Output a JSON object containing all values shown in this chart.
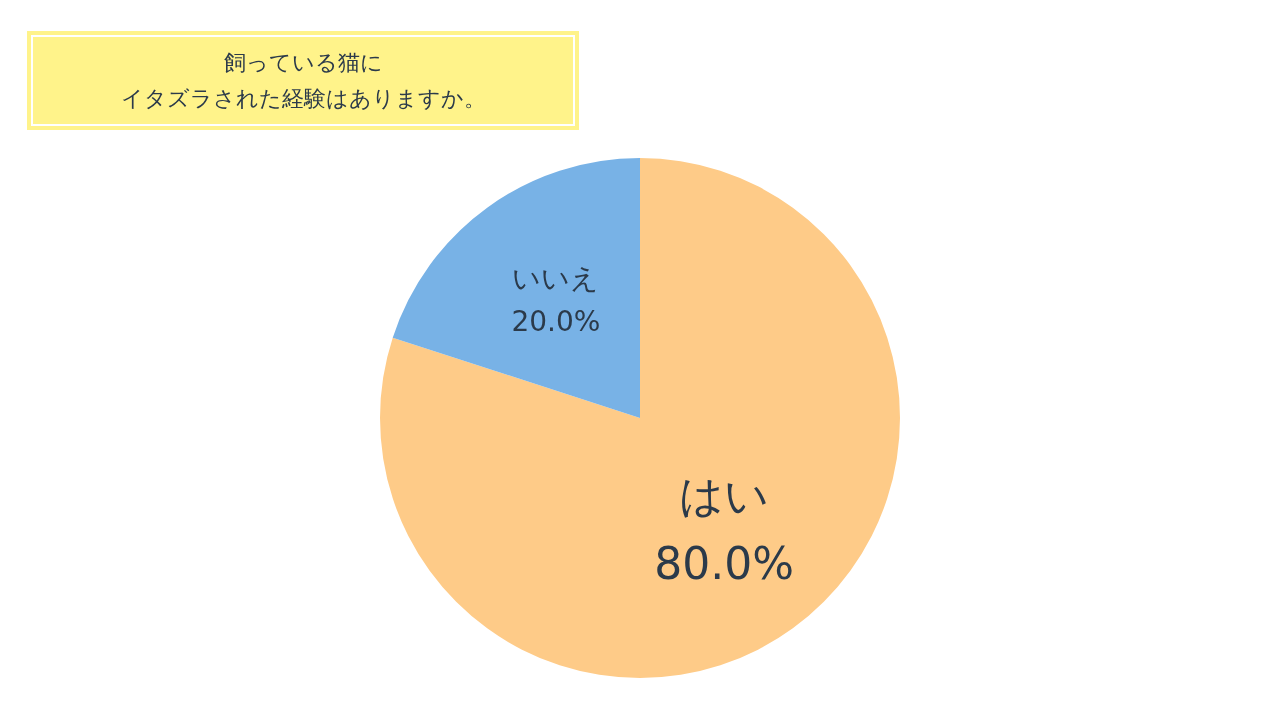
{
  "chart_data": {
    "type": "pie",
    "title": "飼っている猫に",
    "subtitle": "イタズラされた経験はありますか。",
    "categories": [
      "はい",
      "いいえ"
    ],
    "values": [
      80,
      20
    ],
    "colors": [
      "#fecb88",
      "#78b2e6"
    ],
    "value_labels": [
      "80.0%",
      "20.0%"
    ],
    "legend": false
  }
}
